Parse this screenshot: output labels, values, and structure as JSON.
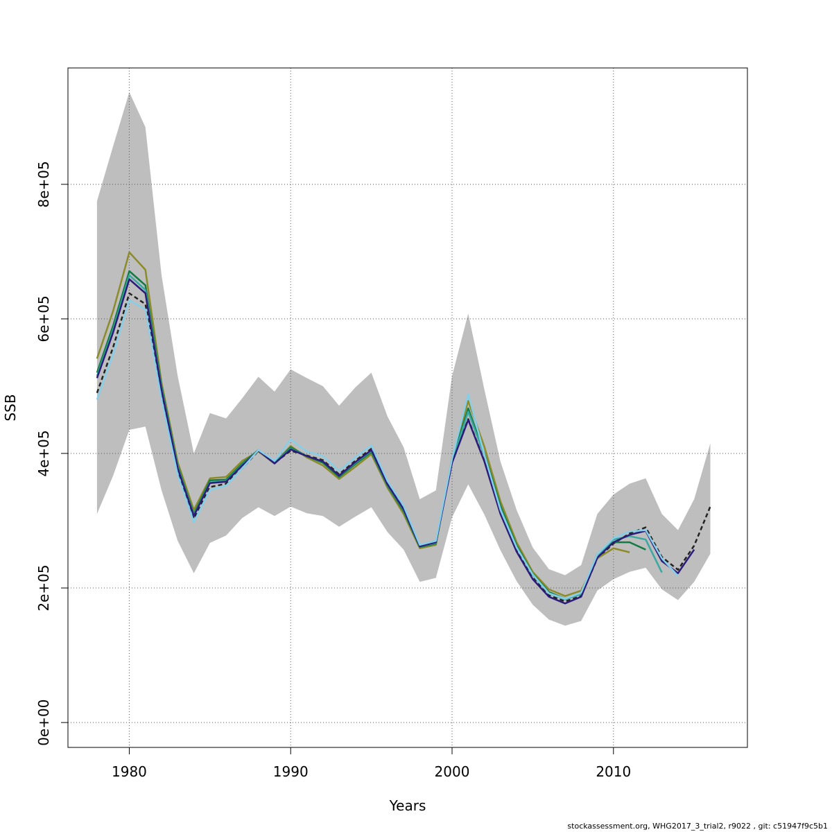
{
  "chart_data": {
    "type": "line",
    "xlabel": "Years",
    "ylabel": "SSB",
    "xlim": [
      1976.2,
      2018.3
    ],
    "ylim": [
      -37000,
      973000
    ],
    "xticks": [
      1980,
      1990,
      2000,
      2010
    ],
    "xtick_labels": [
      "1980",
      "1990",
      "2000",
      "2010"
    ],
    "yticks": [
      0,
      200000,
      400000,
      600000,
      800000
    ],
    "ytick_labels": [
      "0e+00",
      "2e+05",
      "4e+05",
      "6e+05",
      "8e+05"
    ],
    "grid": true,
    "legend": "none",
    "confidence_band": {
      "color": "#bebebe",
      "x": [
        1978,
        1979,
        1980,
        1981,
        1982,
        1983,
        1984,
        1985,
        1986,
        1987,
        1988,
        1989,
        1990,
        1991,
        1992,
        1993,
        1994,
        1995,
        1996,
        1997,
        1998,
        1999,
        2000,
        2001,
        2002,
        2003,
        2004,
        2005,
        2006,
        2007,
        2008,
        2009,
        2010,
        2011,
        2012,
        2013,
        2014,
        2015,
        2016
      ],
      "lower": [
        310000,
        367000,
        435000,
        440000,
        345000,
        270000,
        222000,
        267000,
        278000,
        304000,
        320000,
        307000,
        321000,
        311000,
        307000,
        291000,
        306000,
        320000,
        283000,
        257000,
        209000,
        215000,
        305000,
        354000,
        309000,
        256000,
        210000,
        175000,
        153000,
        144000,
        151000,
        196000,
        213000,
        224000,
        230000,
        198000,
        182000,
        209000,
        251000
      ],
      "upper": [
        775000,
        857000,
        937000,
        885000,
        665000,
        515000,
        400000,
        460000,
        452000,
        482000,
        514000,
        492000,
        525000,
        512000,
        500000,
        471000,
        498000,
        520000,
        455000,
        409000,
        332000,
        345000,
        515000,
        608000,
        495000,
        388000,
        316000,
        260000,
        228000,
        219000,
        234000,
        310000,
        339000,
        355000,
        363000,
        310000,
        286000,
        332000,
        415000
      ]
    },
    "series": [
      {
        "color": "#222222",
        "dash": "6,4",
        "x": [
          1978,
          1979,
          1980,
          1981,
          1982,
          1983,
          1984,
          1985,
          1986,
          1987,
          1988,
          1989,
          1990,
          1991,
          1992,
          1993,
          1994,
          1995,
          1996,
          1997,
          1998,
          1999,
          2000,
          2001,
          2002,
          2003,
          2004,
          2005,
          2006,
          2007,
          2008,
          2009,
          2010,
          2011,
          2012,
          2013,
          2014,
          2015,
          2016
        ],
        "values": [
          490000,
          558000,
          638000,
          622000,
          488000,
          375000,
          303000,
          350000,
          355000,
          378000,
          404000,
          386000,
          404000,
          397000,
          390000,
          369000,
          389000,
          407000,
          355000,
          319000,
          262000,
          268000,
          387000,
          451000,
          389000,
          312000,
          257000,
          217000,
          189000,
          180000,
          188000,
          244000,
          266000,
          281000,
          290000,
          246000,
          227000,
          263000,
          321000
        ]
      },
      {
        "color": "#8b8b2a",
        "x": [
          1978,
          1979,
          1980,
          1981,
          1982,
          1983,
          1984,
          1985,
          1986,
          1987,
          1988,
          1989,
          1990,
          1991,
          1992,
          1993,
          1994,
          1995,
          1996,
          1997,
          1998,
          1999,
          2000,
          2001,
          2002,
          2003,
          2004,
          2005,
          2006,
          2007,
          2008,
          2009,
          2010,
          2011
        ],
        "values": [
          541000,
          612000,
          699000,
          673000,
          505000,
          387000,
          316000,
          363000,
          365000,
          389000,
          403000,
          385000,
          411000,
          394000,
          382000,
          362000,
          380000,
          399000,
          349000,
          310000,
          259000,
          264000,
          393000,
          478000,
          410000,
          329000,
          268000,
          224000,
          198000,
          188000,
          196000,
          244000,
          259000,
          253000
        ]
      },
      {
        "color": "#127a43",
        "x": [
          1978,
          1979,
          1980,
          1981,
          1982,
          1983,
          1984,
          1985,
          1986,
          1987,
          1988,
          1989,
          1990,
          1991,
          1992,
          1993,
          1994,
          1995,
          1996,
          1997,
          1998,
          1999,
          2000,
          2001,
          2002,
          2003,
          2004,
          2005,
          2006,
          2007,
          2008,
          2009,
          2010,
          2011,
          2012
        ],
        "values": [
          520000,
          590000,
          671000,
          650000,
          500000,
          382000,
          310000,
          360000,
          361000,
          385000,
          405000,
          386000,
          409000,
          396000,
          386000,
          365000,
          384000,
          402000,
          352000,
          314000,
          261000,
          266000,
          390000,
          467000,
          400000,
          322000,
          263000,
          221000,
          194000,
          184000,
          192000,
          250000,
          268000,
          268000,
          257000
        ]
      },
      {
        "color": "#3aa8a0",
        "x": [
          1978,
          1979,
          1980,
          1981,
          1982,
          1983,
          1984,
          1985,
          1986,
          1987,
          1988,
          1989,
          1990,
          1991,
          1992,
          1993,
          1994,
          1995,
          1996,
          1997,
          1998,
          1999,
          2000,
          2001,
          2002,
          2003,
          2004,
          2005,
          2006,
          2007,
          2008,
          2009,
          2010,
          2011,
          2012,
          2013
        ],
        "values": [
          515000,
          584000,
          665000,
          643000,
          496000,
          380000,
          308000,
          357000,
          359000,
          383000,
          404000,
          386000,
          407000,
          396000,
          388000,
          367000,
          386000,
          404000,
          353000,
          316000,
          262000,
          267000,
          388000,
          462000,
          397000,
          318000,
          261000,
          219000,
          192000,
          183000,
          191000,
          248000,
          272000,
          277000,
          272000,
          223000
        ]
      },
      {
        "color": "#2b1c7a",
        "x": [
          1978,
          1979,
          1980,
          1981,
          1982,
          1983,
          1984,
          1985,
          1986,
          1987,
          1988,
          1989,
          1990,
          1991,
          1992,
          1993,
          1994,
          1995,
          1996,
          1997,
          1998,
          1999,
          2000,
          2001,
          2002,
          2003,
          2004,
          2005,
          2006,
          2007,
          2008,
          2009,
          2010,
          2011,
          2012,
          2013,
          2014,
          2015
        ],
        "values": [
          512000,
          580000,
          659000,
          638000,
          494000,
          378000,
          307000,
          356000,
          358000,
          382000,
          404000,
          385000,
          406000,
          396000,
          388000,
          367000,
          387000,
          405000,
          354000,
          317000,
          262000,
          268000,
          386000,
          450000,
          388000,
          310000,
          254000,
          213000,
          187000,
          177000,
          187000,
          245000,
          268000,
          279000,
          285000,
          240000,
          222000,
          257000
        ]
      },
      {
        "color": "#87cee8",
        "x": [
          1978,
          1979,
          1980,
          1981,
          1982,
          1983,
          1984,
          1985,
          1986,
          1987,
          1988,
          1989,
          1990,
          1991,
          1992,
          1993,
          1994,
          1995,
          1996,
          1997,
          1998,
          1999,
          2000,
          2001,
          2002,
          2003,
          2004,
          2005,
          2006,
          2007,
          2008,
          2009,
          2010,
          2011,
          2012,
          2013,
          2014
        ],
        "values": [
          480000,
          548000,
          628000,
          614000,
          480000,
          368000,
          298000,
          346000,
          352000,
          378000,
          405000,
          389000,
          421000,
          403000,
          396000,
          374000,
          394000,
          412000,
          359000,
          322000,
          264000,
          270000,
          392000,
          488000,
          398000,
          316000,
          260000,
          220000,
          192000,
          184000,
          193000,
          250000,
          274000,
          284000,
          286000,
          244000,
          218000
        ]
      }
    ]
  },
  "footer": "stockassessment.org, WHG2017_3_trial2, r9022 , git: c51947f9c5b1"
}
